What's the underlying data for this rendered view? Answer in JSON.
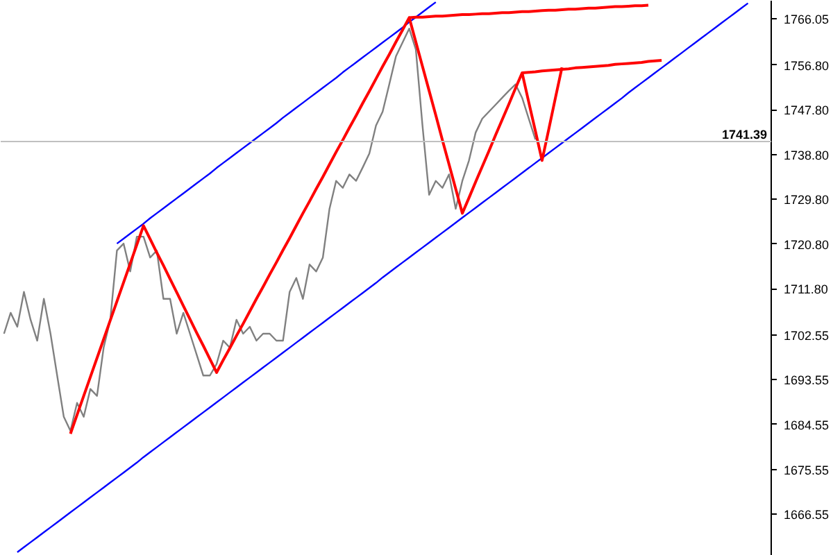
{
  "chart_data": {
    "type": "line",
    "ylim": [
      1658.2,
      1769.7
    ],
    "tick_labels": "y",
    "grid": false,
    "categories": [
      null,
      null,
      null,
      null,
      null,
      null,
      null,
      null,
      null,
      null,
      null,
      null,
      null,
      null,
      null,
      null,
      null,
      null,
      null,
      null,
      null,
      null,
      null,
      null,
      null,
      null,
      null,
      null,
      null,
      null,
      null,
      null,
      null,
      null,
      null,
      null,
      null,
      null,
      null,
      null,
      null,
      null,
      null,
      null,
      null,
      null,
      null,
      null,
      null,
      null,
      null,
      null,
      null,
      null,
      null,
      null,
      null,
      null,
      null,
      null,
      null,
      null,
      null,
      null,
      null,
      null,
      null,
      null,
      null,
      null,
      null,
      null,
      null,
      null,
      null,
      null,
      null,
      null,
      null,
      null,
      null,
      null,
      null,
      null,
      null,
      null,
      null,
      null,
      null,
      null,
      null,
      null,
      null,
      null,
      null,
      null,
      null,
      null,
      null,
      null,
      null,
      null,
      null,
      null,
      null,
      null,
      null,
      null,
      null,
      null,
      null,
      null,
      null,
      null,
      null,
      null
    ],
    "yticks": [
      1666.55,
      1675.55,
      1684.55,
      1693.55,
      1702.55,
      {
        "value": 1711.8,
        "label": "1711.80"
      },
      {
        "value": 1720.8,
        "label": "1720.80"
      },
      {
        "value": 1729.8,
        "label": "1729.80"
      },
      {
        "value": 1738.8,
        "label": "1738.80"
      },
      {
        "value": 1747.8,
        "label": "1747.80"
      },
      {
        "value": 1756.8,
        "label": "1756.80"
      },
      1766.05
    ],
    "ref_lines": [
      {
        "axis": "y",
        "value": 1741.39,
        "label": "1741.39",
        "color": "#c0c0c0"
      }
    ],
    "series": [
      {
        "color": "#808080",
        "values": [
          1702.8,
          1707.0,
          1704.2,
          1711.2,
          1705.6,
          1701.4,
          1709.8,
          1702.8,
          1694.4,
          1686.1,
          1683.3,
          1688.9,
          1686.1,
          1691.7,
          1690.3,
          1700.0,
          1705.6,
          1719.5,
          1720.9,
          1715.3,
          1722.3,
          1722.3,
          1718.1,
          1719.5,
          1709.8,
          1709.8,
          1702.8,
          1707.0,
          1702.8,
          1698.6,
          1694.4,
          1694.4,
          1696.7,
          1701.4,
          1700.0,
          1705.6,
          1702.8,
          1704.2,
          1701.4,
          1702.8,
          1702.8,
          1701.4,
          1701.4,
          1711.2,
          1714.0,
          1709.8,
          1716.7,
          1715.3,
          1718.1,
          1727.9,
          1733.5,
          1732.1,
          1734.8,
          1733.5,
          1736.2,
          1739.0,
          1744.6,
          1747.4,
          1752.9,
          1758.5,
          1761.3,
          1764.1,
          1759.9,
          1744.6,
          1730.7,
          1733.5,
          1732.1,
          1734.8,
          1727.9,
          1733.5,
          1737.6,
          1743.2,
          1746.0,
          1747.4,
          1748.8,
          1750.2,
          1751.6,
          1752.9,
          1750.2,
          1746.0,
          1741.8,
          null,
          null,
          null,
          null,
          null,
          null,
          null,
          null,
          null,
          null,
          null,
          null,
          null,
          null,
          null,
          null,
          null,
          null,
          null,
          null,
          null,
          null,
          null,
          null,
          null,
          null,
          null,
          null,
          null,
          null,
          null,
          null,
          null,
          null,
          null
        ]
      },
      {
        "color": "#0000ff",
        "values": [
          null,
          null,
          null,
          null,
          null,
          null,
          null,
          null,
          null,
          null,
          null,
          null,
          null,
          null,
          null,
          null,
          null,
          1720.9,
          1721.9,
          1722.9,
          1723.9,
          1724.9,
          1726.0,
          1727.0,
          1728.0,
          1729.0,
          1730.0,
          1731.0,
          1732.0,
          1733.0,
          1734.0,
          1735.0,
          1736.1,
          1737.1,
          1738.1,
          1739.1,
          1740.1,
          1741.1,
          1742.1,
          1743.1,
          1744.1,
          1745.1,
          1746.2,
          1747.2,
          1748.2,
          1749.2,
          1750.2,
          1751.2,
          1752.2,
          1753.2,
          1754.2,
          1755.3,
          1756.3,
          1757.3,
          1758.3,
          1759.3,
          1760.3,
          1761.3,
          1762.3,
          1763.3,
          1764.3,
          1765.4,
          1766.4,
          1767.4,
          1768.4,
          1769.4,
          null,
          null,
          null,
          null,
          null,
          null,
          null,
          null,
          null,
          null,
          null,
          null,
          null,
          null,
          null,
          null,
          null,
          null,
          null,
          null,
          null,
          null,
          null,
          null,
          null,
          null,
          null,
          null,
          null,
          null,
          null,
          null,
          null,
          null,
          null,
          null,
          null,
          null,
          null,
          null,
          null,
          null,
          null,
          null,
          null,
          null,
          null,
          null,
          null,
          null
        ]
      },
      {
        "color": "#0000ff",
        "values": [
          null,
          null,
          1658.9,
          1659.9,
          1660.9,
          1661.9,
          1662.9,
          1663.9,
          1664.9,
          1665.9,
          1666.9,
          1667.9,
          1668.9,
          1669.9,
          1670.9,
          1671.9,
          1672.9,
          1673.9,
          1674.9,
          1675.9,
          1676.9,
          1678.0,
          1679.0,
          1680.0,
          1681.0,
          1682.0,
          1683.0,
          1684.0,
          1685.0,
          1686.0,
          1687.0,
          1688.0,
          1689.0,
          1690.0,
          1691.0,
          1692.0,
          1693.0,
          1694.0,
          1695.0,
          1696.0,
          1697.0,
          1698.0,
          1699.0,
          1700.0,
          1701.0,
          1702.0,
          1703.0,
          1704.0,
          1705.0,
          1706.0,
          1707.0,
          1708.0,
          1709.0,
          1710.0,
          1711.0,
          1712.0,
          1713.0,
          1714.1,
          1715.1,
          1716.1,
          1717.1,
          1718.1,
          1719.1,
          1720.1,
          1721.1,
          1722.1,
          1723.1,
          1724.1,
          1725.1,
          1726.1,
          1727.1,
          1728.1,
          1729.1,
          1730.1,
          1731.1,
          1732.1,
          1733.1,
          1734.1,
          1735.1,
          1736.1,
          1737.1,
          1738.1,
          1739.1,
          1740.1,
          1741.1,
          1742.1,
          1743.1,
          1744.1,
          1745.1,
          1746.1,
          1747.1,
          1748.1,
          1749.1,
          1750.1,
          1751.2,
          1752.2,
          1753.2,
          1754.2,
          1755.2,
          1756.2,
          1757.2,
          1758.2,
          1759.2,
          1760.2,
          1761.2,
          1762.2,
          1763.2,
          1764.2,
          1765.2,
          1766.2,
          1767.2,
          1768.2,
          1769.2,
          null,
          null,
          null
        ]
      },
      {
        "color": "#ff0000",
        "values": [
          null,
          null,
          null,
          null,
          null,
          null,
          null,
          null,
          null,
          null,
          1682.7,
          1686.5,
          1690.3,
          1694.1,
          1697.9,
          1701.7,
          1705.5,
          1709.3,
          1713.1,
          1716.9,
          1720.7,
          1724.5,
          1721.8,
          1719.1,
          1716.5,
          1713.8,
          1711.1,
          1708.4,
          1705.7,
          1703.0,
          1700.4,
          1697.7,
          1695.0,
          1697.5,
          1699.9,
          1702.4,
          1704.8,
          1707.3,
          1709.8,
          1712.2,
          1714.7,
          1717.1,
          1719.6,
          1722.0,
          1724.5,
          1727.0,
          1729.4,
          1731.9,
          1734.3,
          1736.8,
          1739.3,
          1741.7,
          1744.2,
          1746.6,
          1749.1,
          1751.5,
          1754.0,
          1756.5,
          1758.9,
          1761.4,
          1763.8,
          1766.3,
          1761.4,
          1756.5,
          1751.6,
          1746.7,
          1741.7,
          1736.8,
          1731.9,
          1727.0,
          1730.1,
          1733.3,
          1736.4,
          1739.5,
          1742.7,
          1745.8,
          1748.9,
          1752.1,
          1755.2,
          1749.3,
          1743.5,
          1737.6,
          1743.8,
          1750.1,
          1756.3,
          null,
          null,
          null,
          null,
          null,
          null,
          null,
          null,
          null,
          null,
          null,
          null,
          null,
          null,
          null,
          null,
          null,
          null,
          null,
          null,
          null,
          null,
          null,
          null,
          null,
          null,
          null,
          null,
          null,
          null,
          null
        ]
      },
      {
        "color": "#ff0000",
        "values": [
          null,
          null,
          null,
          null,
          null,
          null,
          null,
          null,
          null,
          null,
          null,
          null,
          null,
          null,
          null,
          null,
          null,
          null,
          null,
          null,
          null,
          null,
          null,
          null,
          null,
          null,
          null,
          null,
          null,
          null,
          null,
          null,
          null,
          null,
          null,
          null,
          null,
          null,
          null,
          null,
          null,
          null,
          null,
          null,
          null,
          null,
          null,
          null,
          null,
          null,
          null,
          null,
          null,
          null,
          null,
          null,
          null,
          null,
          null,
          null,
          null,
          1766.3,
          1766.4,
          1766.4,
          1766.5,
          1766.6,
          1766.6,
          1766.7,
          1766.8,
          1766.9,
          1766.9,
          1767.0,
          1767.1,
          1767.1,
          1767.2,
          1767.3,
          1767.3,
          1767.4,
          1767.5,
          1767.5,
          1767.6,
          1767.7,
          1767.8,
          1767.8,
          1767.9,
          1768.0,
          1768.0,
          1768.1,
          1768.2,
          1768.2,
          1768.3,
          1768.4,
          1768.5,
          1768.5,
          1768.6,
          1768.7,
          1768.7,
          1768.8,
          null,
          null,
          null,
          null,
          null,
          null,
          null,
          null,
          null,
          null,
          null,
          null,
          null,
          null,
          null,
          null,
          null,
          null
        ]
      },
      {
        "color": "#ff0000",
        "values": [
          null,
          null,
          null,
          null,
          null,
          null,
          null,
          null,
          null,
          null,
          null,
          null,
          null,
          null,
          null,
          null,
          null,
          null,
          null,
          null,
          null,
          null,
          null,
          null,
          null,
          null,
          null,
          null,
          null,
          null,
          null,
          null,
          null,
          null,
          null,
          null,
          null,
          null,
          null,
          null,
          null,
          null,
          null,
          null,
          null,
          null,
          null,
          null,
          null,
          null,
          null,
          null,
          null,
          null,
          null,
          null,
          null,
          null,
          null,
          null,
          null,
          null,
          null,
          null,
          null,
          null,
          null,
          null,
          null,
          null,
          null,
          null,
          null,
          null,
          null,
          null,
          null,
          null,
          1755.2,
          1755.3,
          1755.4,
          1755.6,
          1755.7,
          1755.8,
          1755.9,
          1756.0,
          1756.2,
          1756.3,
          1756.4,
          1756.5,
          1756.6,
          1756.7,
          1756.9,
          1757.0,
          1757.1,
          1757.2,
          1757.3,
          1757.5,
          1757.6,
          1757.7,
          null,
          null,
          null,
          null,
          null,
          null,
          null,
          null,
          null,
          null,
          null,
          null,
          null,
          null,
          null,
          null
        ]
      }
    ]
  }
}
